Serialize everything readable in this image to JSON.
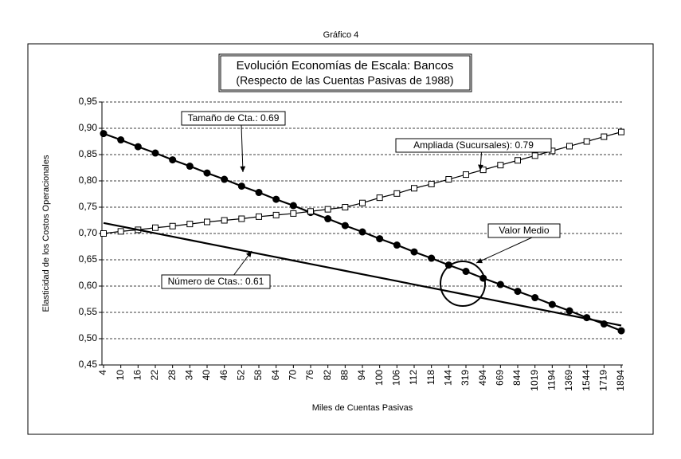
{
  "chart_data": {
    "type": "line",
    "header": "Gráfico 4",
    "title": "Evolución Economías de Escala: Bancos",
    "subtitle": "(Respecto de las Cuentas Pasivas de 1988)",
    "y_label": "Elasticidad de los Costos Operacionales",
    "x_label": "Miles de Cuentas Pasivas",
    "categories": [
      "4",
      "10",
      "16",
      "22",
      "28",
      "34",
      "40",
      "46",
      "52",
      "58",
      "64",
      "70",
      "76",
      "82",
      "88",
      "94",
      "100",
      "106",
      "112",
      "118",
      "144",
      "319",
      "494",
      "669",
      "844",
      "1019",
      "1194",
      "1369",
      "1544",
      "1719",
      "1894"
    ],
    "ylim": [
      0.45,
      0.95
    ],
    "yticks": [
      {
        "value": 0.45,
        "label": "0,45"
      },
      {
        "value": 0.5,
        "label": "0,50"
      },
      {
        "value": 0.55,
        "label": "0,55"
      },
      {
        "value": 0.6,
        "label": "0,60"
      },
      {
        "value": 0.65,
        "label": "0,65"
      },
      {
        "value": 0.7,
        "label": "0,70"
      },
      {
        "value": 0.75,
        "label": "0,75"
      },
      {
        "value": 0.8,
        "label": "0,80"
      },
      {
        "value": 0.85,
        "label": "0,85"
      },
      {
        "value": 0.9,
        "label": "0,90"
      },
      {
        "value": 0.95,
        "label": "0,95"
      }
    ],
    "grid": true,
    "series": [
      {
        "name": "Tamaño de Cta.: 0.69",
        "color": "#000000",
        "marker": "circle",
        "values": [
          0.89,
          0.878,
          0.865,
          0.853,
          0.84,
          0.828,
          0.815,
          0.803,
          0.79,
          0.778,
          0.765,
          0.753,
          0.74,
          0.728,
          0.715,
          0.703,
          0.69,
          0.678,
          0.665,
          0.653,
          0.64,
          0.628,
          0.615,
          0.603,
          0.59,
          0.578,
          0.565,
          0.553,
          0.54,
          0.528,
          0.515
        ]
      },
      {
        "name": "Ampliada (Sucursales): 0.79",
        "color": "#000000",
        "marker": "square",
        "values": [
          0.7,
          0.704,
          0.707,
          0.711,
          0.714,
          0.718,
          0.722,
          0.725,
          0.728,
          0.732,
          0.735,
          0.738,
          0.742,
          0.746,
          0.75,
          0.758,
          0.768,
          0.776,
          0.786,
          0.794,
          0.803,
          0.812,
          0.821,
          0.83,
          0.839,
          0.848,
          0.857,
          0.866,
          0.875,
          0.884,
          0.893
        ]
      },
      {
        "name": "Número de Ctas.: 0.61",
        "color": "#000000",
        "marker": "none",
        "values": [
          0.72,
          0.7135,
          0.707,
          0.7005,
          0.694,
          0.6875,
          0.681,
          0.6745,
          0.668,
          0.6615,
          0.655,
          0.6485,
          0.642,
          0.6355,
          0.629,
          0.6225,
          0.616,
          0.6095,
          0.603,
          0.5965,
          0.59,
          0.5835,
          0.577,
          0.5705,
          0.564,
          0.5575,
          0.551,
          0.5445,
          0.538,
          0.5315,
          0.525
        ]
      }
    ],
    "annotation": "Valor Medio"
  }
}
